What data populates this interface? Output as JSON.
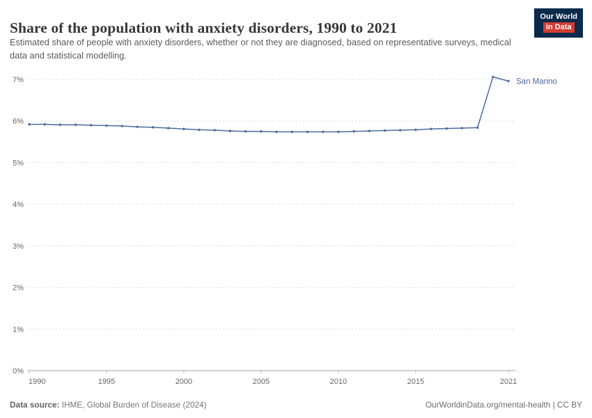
{
  "header": {
    "title": "Share of the population with anxiety disorders, 1990 to 2021",
    "subtitle": "Estimated share of people with anxiety disorders, whether or not they are diagnosed, based on representative surveys, medical data and statistical modelling.",
    "logo": {
      "line1": "Our World",
      "line2": "in Data"
    }
  },
  "chart_data": {
    "type": "line",
    "title": "Share of the population with anxiety disorders, 1990 to 2021",
    "x": [
      1990,
      1991,
      1992,
      1993,
      1994,
      1995,
      1996,
      1997,
      1998,
      1999,
      2000,
      2001,
      2002,
      2003,
      2004,
      2005,
      2006,
      2007,
      2008,
      2009,
      2010,
      2011,
      2012,
      2013,
      2014,
      2015,
      2016,
      2017,
      2018,
      2019,
      2020,
      2021
    ],
    "series": [
      {
        "name": "San Marino",
        "values": [
          5.92,
          5.92,
          5.91,
          5.91,
          5.9,
          5.89,
          5.88,
          5.86,
          5.85,
          5.83,
          5.81,
          5.79,
          5.78,
          5.76,
          5.75,
          5.75,
          5.74,
          5.74,
          5.74,
          5.74,
          5.74,
          5.75,
          5.76,
          5.77,
          5.78,
          5.79,
          5.81,
          5.82,
          5.83,
          5.84,
          7.06,
          6.96
        ]
      }
    ],
    "xlabel": "",
    "ylabel": "",
    "ylim": [
      0,
      7
    ],
    "yticks": [
      {
        "value": 0,
        "label": "0%"
      },
      {
        "value": 1,
        "label": "1%"
      },
      {
        "value": 2,
        "label": "2%"
      },
      {
        "value": 3,
        "label": "3%"
      },
      {
        "value": 4,
        "label": "4%"
      },
      {
        "value": 5,
        "label": "5%"
      },
      {
        "value": 6,
        "label": "6%"
      },
      {
        "value": 7,
        "label": "7%"
      }
    ],
    "xticks": [
      1990,
      1995,
      2000,
      2005,
      2010,
      2015,
      2021
    ],
    "grid": "horizontal-dashed",
    "legend": "entity-label-right",
    "line_color": "#4c6a9c",
    "grid_color": "#dcdcdc",
    "axis_color": "#a3a3a3"
  },
  "footer": {
    "source_label": "Data source:",
    "source_text": " IHME, Global Burden of Disease (2024)",
    "right_text": "OurWorldinData.org/mental-health | CC BY"
  }
}
